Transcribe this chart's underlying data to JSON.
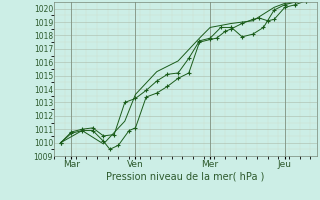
{
  "xlabel": "Pression niveau de la mer( hPa )",
  "background_color": "#cceee6",
  "grid_major_color": "#aabbaa",
  "grid_minor_color": "#ccddcc",
  "line_color": "#1a5c1a",
  "ylim": [
    1009,
    1020.5
  ],
  "yticks": [
    1009,
    1010,
    1011,
    1012,
    1013,
    1014,
    1015,
    1016,
    1017,
    1018,
    1019,
    1020
  ],
  "xtick_labels": [
    "Mar",
    "Ven",
    "Mer",
    "Jeu"
  ],
  "xtick_positions": [
    0.5,
    3.5,
    7.0,
    10.5
  ],
  "vline_positions": [
    0.5,
    3.5,
    7.0,
    10.5
  ],
  "xlim": [
    -0.3,
    12.0
  ],
  "series1_x": [
    0.0,
    0.5,
    1.0,
    1.5,
    2.0,
    2.3,
    2.7,
    3.2,
    3.5,
    4.0,
    4.5,
    5.0,
    5.5,
    6.0,
    6.5,
    7.0,
    7.3,
    7.7,
    8.0,
    8.5,
    9.0,
    9.3,
    9.7,
    10.0,
    10.5,
    11.0,
    11.5
  ],
  "series1_y": [
    1010.0,
    1010.7,
    1010.9,
    1010.9,
    1010.1,
    1009.5,
    1009.8,
    1010.9,
    1011.1,
    1013.4,
    1013.7,
    1014.2,
    1014.8,
    1015.2,
    1017.5,
    1017.7,
    1017.8,
    1018.3,
    1018.5,
    1018.9,
    1019.2,
    1019.3,
    1019.1,
    1019.2,
    1020.1,
    1020.3,
    1020.6
  ],
  "series2_x": [
    0.0,
    0.5,
    1.0,
    1.5,
    2.0,
    2.5,
    3.0,
    3.5,
    4.0,
    4.5,
    5.0,
    5.5,
    6.0,
    6.5,
    7.0,
    7.5,
    8.0,
    8.5,
    9.0,
    9.5,
    10.0,
    10.5,
    11.0,
    11.5
  ],
  "series2_y": [
    1010.0,
    1010.8,
    1011.0,
    1011.1,
    1010.5,
    1010.6,
    1013.0,
    1013.3,
    1013.9,
    1014.6,
    1015.1,
    1015.2,
    1016.3,
    1017.6,
    1017.8,
    1018.6,
    1018.6,
    1017.9,
    1018.1,
    1018.6,
    1019.9,
    1020.3,
    1020.5,
    1020.6
  ],
  "series3_x": [
    0.0,
    1.0,
    2.0,
    3.0,
    3.5,
    4.5,
    5.5,
    6.5,
    7.0,
    8.0,
    9.0,
    10.0,
    10.5,
    11.5
  ],
  "series3_y": [
    1010.0,
    1010.9,
    1009.9,
    1011.6,
    1013.6,
    1015.3,
    1016.1,
    1017.8,
    1018.6,
    1018.9,
    1019.1,
    1020.1,
    1020.4,
    1020.6
  ]
}
